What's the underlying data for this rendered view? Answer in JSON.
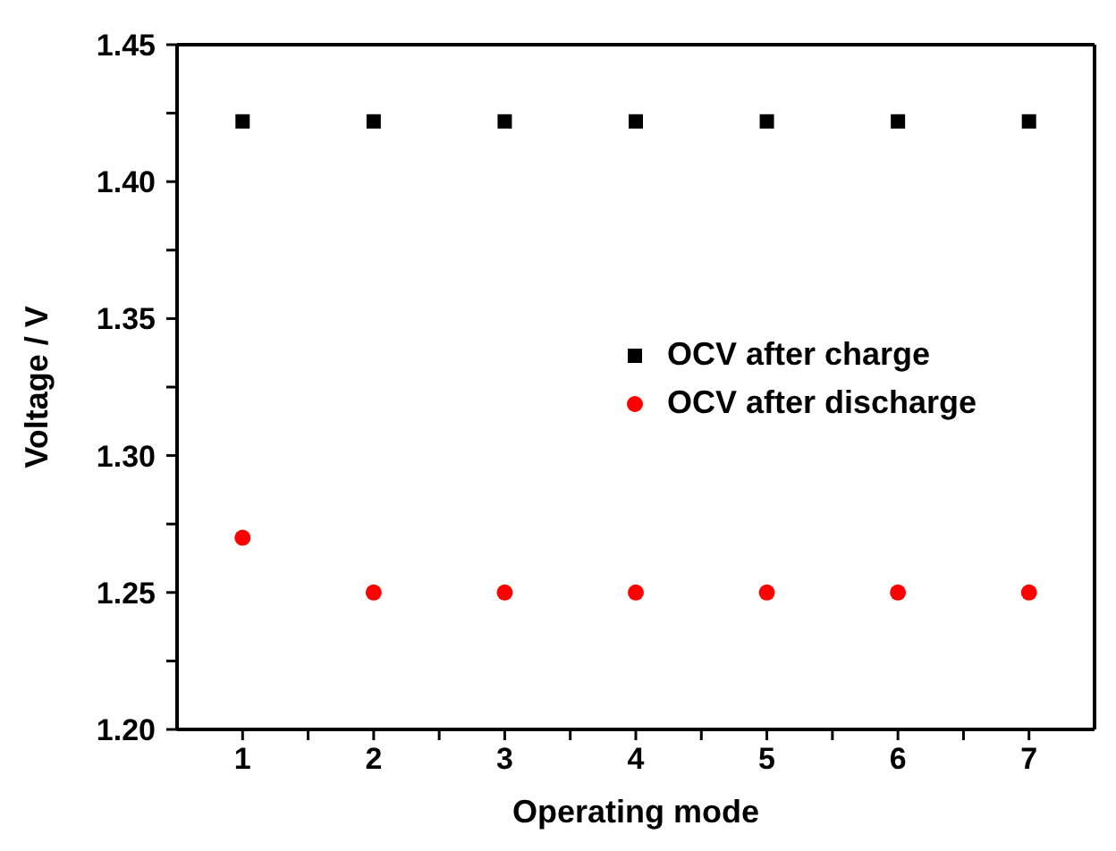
{
  "chart_data": {
    "type": "scatter",
    "xlabel": "Operating mode",
    "ylabel": "Voltage / V",
    "x": [
      1,
      2,
      3,
      4,
      5,
      6,
      7
    ],
    "series": [
      {
        "name": "OCV after charge",
        "color": "#000000",
        "marker": "square",
        "values": [
          1.422,
          1.422,
          1.422,
          1.422,
          1.422,
          1.422,
          1.422
        ]
      },
      {
        "name": "OCV after discharge",
        "color": "#ff0000",
        "marker": "circle",
        "values": [
          1.27,
          1.25,
          1.25,
          1.25,
          1.25,
          1.25,
          1.25
        ]
      }
    ],
    "xlim": [
      0.5,
      7.5
    ],
    "xticks": [
      1,
      {
        "value": 1.5,
        "label": null
      },
      2,
      {
        "value": 2.5,
        "label": null
      },
      3,
      {
        "value": 3.5,
        "label": null
      },
      4,
      {
        "value": 4.5,
        "label": null
      },
      5,
      {
        "value": 5.5,
        "label": null
      },
      6,
      {
        "value": 6.5,
        "label": null
      },
      7
    ],
    "ylim": [
      1.2,
      1.45
    ],
    "yticks": [
      {
        "value": 1.2,
        "label": "1.20"
      },
      {
        "value": 1.225,
        "label": null
      },
      {
        "value": 1.25,
        "label": "1.25"
      },
      {
        "value": 1.275,
        "label": null
      },
      {
        "value": 1.3,
        "label": "1.30"
      },
      {
        "value": 1.325,
        "label": null
      },
      {
        "value": 1.35,
        "label": "1.35"
      },
      {
        "value": 1.375,
        "label": null
      },
      {
        "value": 1.4,
        "label": "1.40"
      },
      {
        "value": 1.425,
        "label": null
      },
      {
        "value": 1.45,
        "label": "1.45"
      }
    ],
    "legend": "right"
  }
}
